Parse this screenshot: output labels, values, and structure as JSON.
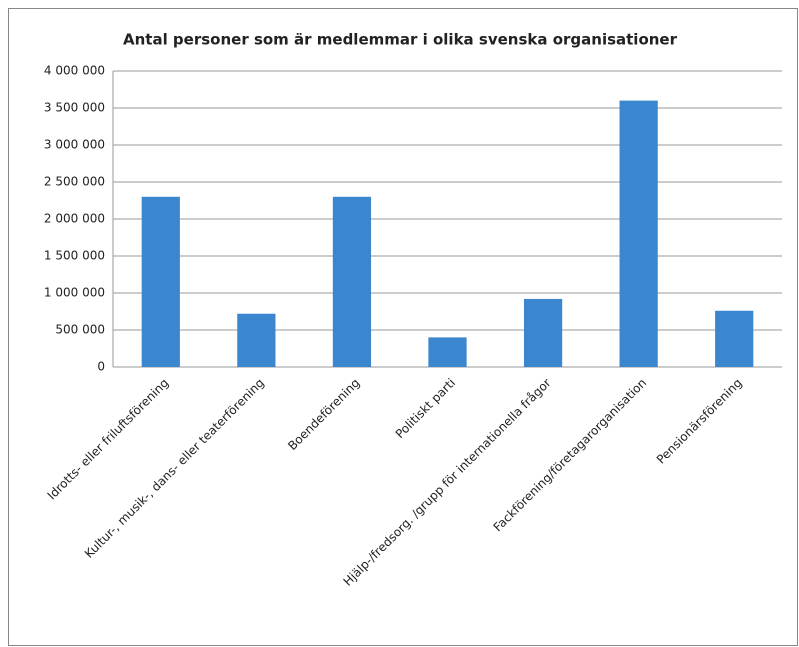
{
  "chart_data": {
    "type": "bar",
    "title": "Antal personer som är medlemmar i olika svenska organisationer",
    "categories": [
      "Idrotts- eller friluftsförening",
      "Kultur-, musik-, dans- eller teaterförening",
      "Boendeförening",
      "Politiskt parti",
      "Hjälp-/fredsorg. /grupp för internationella frågor",
      "Fackförening/företagarorganisation",
      "Pensionärsförening"
    ],
    "values": [
      2300000,
      720000,
      2300000,
      400000,
      920000,
      3600000,
      760000
    ],
    "color": "#3a87cf",
    "ylim": [
      0,
      4000000
    ],
    "yticks": [
      {
        "value": 0,
        "label": "0"
      },
      {
        "value": 500000,
        "label": "500 000"
      },
      {
        "value": 1000000,
        "label": "1 000 000"
      },
      {
        "value": 1500000,
        "label": "1 500 000"
      },
      {
        "value": 2000000,
        "label": "2 000 000"
      },
      {
        "value": 2500000,
        "label": "2 500 000"
      },
      {
        "value": 3000000,
        "label": "3 000 000"
      },
      {
        "value": 3500000,
        "label": "3 500 000"
      },
      {
        "value": 4000000,
        "label": "4 000 000"
      }
    ],
    "grid": true
  }
}
